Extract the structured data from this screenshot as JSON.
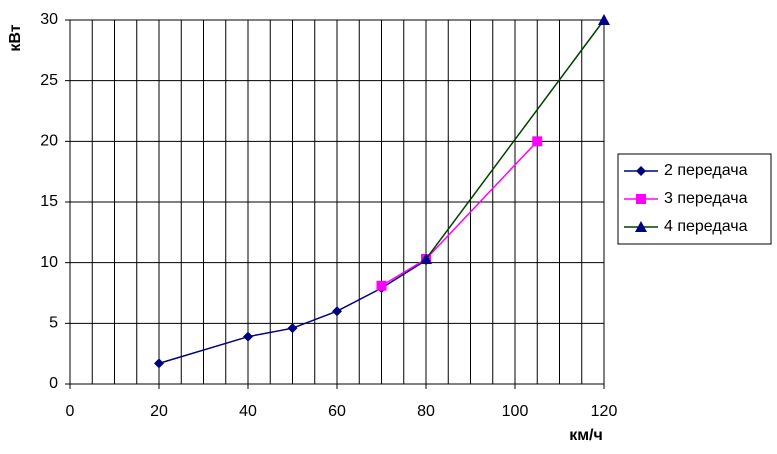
{
  "chart_data": {
    "type": "line",
    "y_label": "кВт",
    "x_label": "км/ч",
    "xlim": [
      0,
      120
    ],
    "xticks": [
      0,
      20,
      40,
      60,
      80,
      100,
      120
    ],
    "x_grid": [
      0,
      5,
      10,
      15,
      20,
      25,
      30,
      35,
      40,
      45,
      50,
      55,
      60,
      65,
      70,
      75,
      80,
      85,
      90,
      95,
      100,
      105,
      110,
      115,
      120
    ],
    "ylim": [
      0,
      30
    ],
    "yticks": [
      0,
      5,
      10,
      15,
      20,
      25,
      30
    ],
    "grid": true,
    "legend": "right",
    "series": [
      {
        "name": "2 передача",
        "color": "#000080",
        "marker_color": "#000080",
        "marker": "diamond",
        "x": [
          20,
          40,
          50,
          60,
          70,
          80
        ],
        "values": [
          1.7,
          3.9,
          4.6,
          6.0,
          7.9,
          10.2
        ]
      },
      {
        "name": "3 передача",
        "color": "#ff00ff",
        "marker_color": "#ff00ff",
        "marker": "square",
        "x": [
          70,
          80,
          105
        ],
        "values": [
          8.1,
          10.3,
          20.0
        ]
      },
      {
        "name": "4 передача",
        "color": "#004000",
        "marker_color": "#000080",
        "marker": "triangle",
        "x": [
          80,
          120
        ],
        "values": [
          10.3,
          30
        ]
      }
    ]
  }
}
